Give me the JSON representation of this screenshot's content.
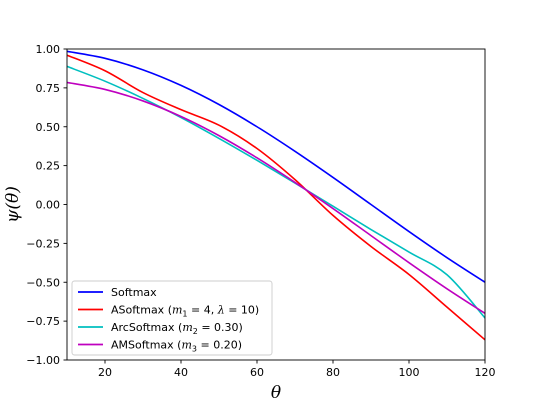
{
  "chart_data": {
    "type": "line",
    "title": "",
    "xlabel": "θ",
    "ylabel": "ψ(θ)",
    "xlim": [
      10,
      120
    ],
    "ylim": [
      -1.0,
      1.0
    ],
    "x_ticks": [
      20,
      40,
      60,
      80,
      100,
      120
    ],
    "x_tick_labels": [
      "20",
      "40",
      "60",
      "80",
      "100",
      "120"
    ],
    "y_ticks": [
      -1.0,
      -0.75,
      -0.5,
      -0.25,
      0.0,
      0.25,
      0.5,
      0.75,
      1.0
    ],
    "y_tick_labels": [
      "−1.00",
      "−0.75",
      "−0.50",
      "−0.25",
      "0.00",
      "0.25",
      "0.50",
      "0.75",
      "1.00"
    ],
    "grid": false,
    "legend_position": "bottom-left",
    "x": [
      10,
      20,
      30,
      40,
      50,
      60,
      70,
      80,
      90,
      100,
      110,
      120
    ],
    "series": [
      {
        "name": "Softmax",
        "legend_label": {
          "pre": "Softmax",
          "parts": []
        },
        "color": "#0000ff",
        "values": [
          0.985,
          0.94,
          0.866,
          0.766,
          0.643,
          0.5,
          0.342,
          0.174,
          0.0,
          -0.174,
          -0.342,
          -0.5
        ]
      },
      {
        "name": "ASoftmax",
        "legend_label": {
          "pre": "ASoftmax (",
          "parts": [
            {
              "t": "m",
              "i": true
            },
            {
              "t": "1",
              "sub": true
            },
            {
              "t": " = 4, "
            },
            {
              "t": "λ",
              "i": true
            },
            {
              "t": " = 10)"
            }
          ]
        },
        "color": "#ff0000",
        "values": [
          0.96,
          0.86,
          0.72,
          0.61,
          0.51,
          0.36,
          0.16,
          -0.07,
          -0.27,
          -0.45,
          -0.66,
          -0.87
        ]
      },
      {
        "name": "ArcSoftmax",
        "legend_label": {
          "pre": "ArcSoftmax (",
          "parts": [
            {
              "t": "m",
              "i": true
            },
            {
              "t": "2",
              "sub": true
            },
            {
              "t": " = 0.30)"
            }
          ]
        },
        "color": "#00bfbf",
        "values": [
          0.888,
          0.793,
          0.682,
          0.559,
          0.425,
          0.284,
          0.138,
          -0.011,
          -0.161,
          -0.306,
          -0.452,
          -0.73
        ]
      },
      {
        "name": "AMSoftmax",
        "legend_label": {
          "pre": "AMSoftmax (",
          "parts": [
            {
              "t": "m",
              "i": true
            },
            {
              "t": "3",
              "sub": true
            },
            {
              "t": " = 0.20)"
            }
          ]
        },
        "color": "#bf00bf",
        "values": [
          0.785,
          0.74,
          0.666,
          0.566,
          0.443,
          0.3,
          0.142,
          -0.026,
          -0.2,
          -0.374,
          -0.542,
          -0.7
        ]
      }
    ]
  }
}
